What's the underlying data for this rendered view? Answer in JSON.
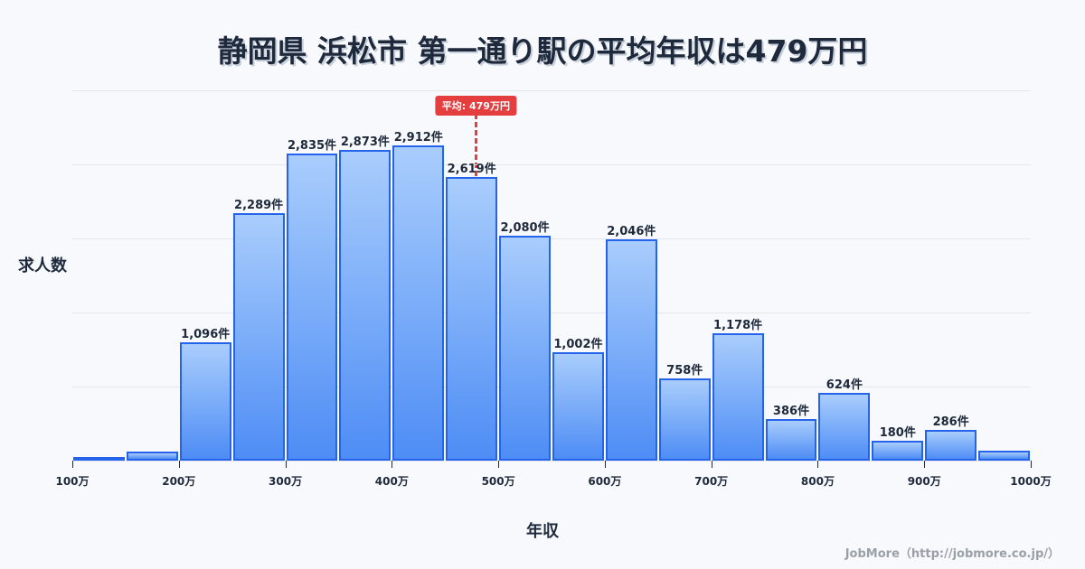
{
  "title": "静岡県 浜松市 第一通り駅の平均年収は479万円",
  "y_axis_label": "求人数",
  "x_axis_label": "年収",
  "credit": "JobMore（http://jobmore.co.jp/）",
  "average": {
    "label": "平均: 479万円",
    "value": 479,
    "color": "#e53e3e"
  },
  "colors": {
    "bar_border": "#2563eb",
    "bar_top": "#a9cdfc",
    "bar_bottom": "#4e8df5"
  },
  "chart_data": {
    "type": "bar",
    "title": "静岡県 浜松市 第一通り駅の平均年収は479万円",
    "xlabel": "年収",
    "ylabel": "求人数",
    "x_range": [
      100,
      1000
    ],
    "bin_width": 50,
    "categories": [
      "100-150万",
      "150-200万",
      "200-250万",
      "250-300万",
      "300-350万",
      "350-400万",
      "400-450万",
      "450-500万",
      "500-550万",
      "550-600万",
      "600-650万",
      "650-700万",
      "700-750万",
      "750-800万",
      "800-850万",
      "850-900万",
      "900-950万",
      "950-1000万"
    ],
    "values": [
      10,
      80,
      1096,
      2289,
      2835,
      2873,
      2912,
      2619,
      2080,
      1002,
      2046,
      758,
      1178,
      386,
      624,
      180,
      286,
      90
    ],
    "labels": [
      "",
      "",
      "1,096件",
      "2,289件",
      "2,835件",
      "2,873件",
      "2,912件",
      "2,619件",
      "2,080件",
      "1,002件",
      "2,046件",
      "758件",
      "1,178件",
      "386件",
      "624件",
      "180件",
      "286件",
      ""
    ],
    "x_ticks": [
      "100万",
      "200万",
      "300万",
      "400万",
      "500万",
      "600万",
      "700万",
      "800万",
      "900万",
      "1000万"
    ],
    "grid": true,
    "annotations": [
      {
        "type": "vline",
        "x": 479,
        "label": "平均: 479万円"
      }
    ]
  }
}
